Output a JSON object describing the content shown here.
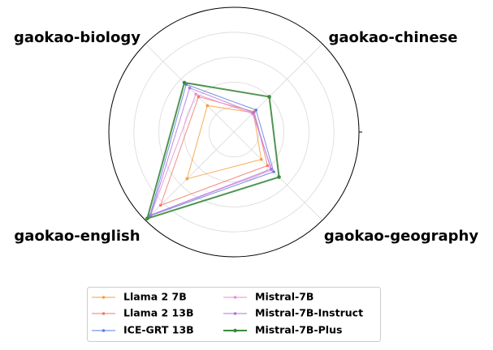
{
  "chart_data": {
    "type": "radar",
    "axes": [
      "gaokao-chinese",
      "gaokao-biology",
      "gaokao-english",
      "gaokao-geography"
    ],
    "rlim": [
      0,
      100
    ],
    "grid": true,
    "legend_position": "bottom",
    "series": [
      {
        "name": "Llama 2 7B",
        "color": "#f5a03a",
        "values": [
          22,
          30,
          53,
          31
        ],
        "line": "thin"
      },
      {
        "name": "Llama 2 13B",
        "color": "#f07a6a",
        "values": [
          23,
          40,
          83,
          38
        ],
        "line": "thin"
      },
      {
        "name": "ICE-GRT 13B",
        "color": "#5a7fdc",
        "values": [
          25,
          54,
          95,
          45
        ],
        "line": "thin"
      },
      {
        "name": "Mistral-7B",
        "color": "#e88ed8",
        "values": [
          21,
          43,
          94,
          43
        ],
        "line": "thin"
      },
      {
        "name": "Mistral-7B-Instruct",
        "color": "#b073e0",
        "values": [
          22,
          50,
          94,
          42
        ],
        "line": "thin"
      },
      {
        "name": "Mistral-7B-Plus",
        "color": "#3c8a3c",
        "values": [
          40,
          56,
          98,
          51
        ],
        "line": "thick"
      }
    ]
  }
}
